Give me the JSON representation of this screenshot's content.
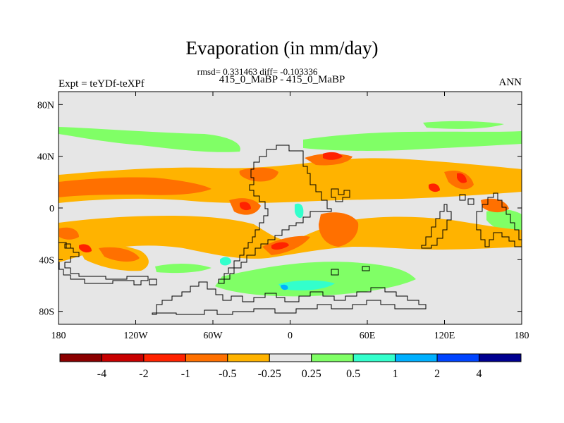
{
  "chart_data": {
    "type": "heatmap",
    "title": "Evaporation (in mm/day)",
    "subtitle": "rmsd= 0.331463 diff= -0.103336",
    "case_label": "415_0_MaBP - 415_0_MaBP",
    "left_label": "Expt = teYDf-teXPf",
    "right_label": "ANN",
    "x_ticks": [
      "180",
      "120W",
      "60W",
      "0",
      "60E",
      "120E",
      "180"
    ],
    "x_tick_values": [
      -180,
      -120,
      -60,
      0,
      60,
      120,
      180
    ],
    "y_ticks": [
      "80N",
      "40N",
      "0",
      "40S",
      "80S"
    ],
    "y_tick_values": [
      80,
      40,
      0,
      -40,
      -80
    ],
    "xlim": [
      -180,
      180
    ],
    "ylim": [
      -90,
      90
    ],
    "colorbar": {
      "labels": [
        "-4",
        "-2",
        "-1",
        "-0.5",
        "-0.25",
        "0.25",
        "0.5",
        "1",
        "2",
        "4"
      ],
      "levels": [
        -4,
        -2,
        -1,
        -0.5,
        -0.25,
        0.25,
        0.5,
        1,
        2,
        4
      ],
      "colors": [
        "#8b0000",
        "#c80000",
        "#ff2200",
        "#ff7000",
        "#ffb300",
        "#e6e6e6",
        "#80ff66",
        "#33ffcc",
        "#00b0ff",
        "#0044ff",
        "#000090"
      ]
    },
    "background_color": "#e6e6e6"
  }
}
